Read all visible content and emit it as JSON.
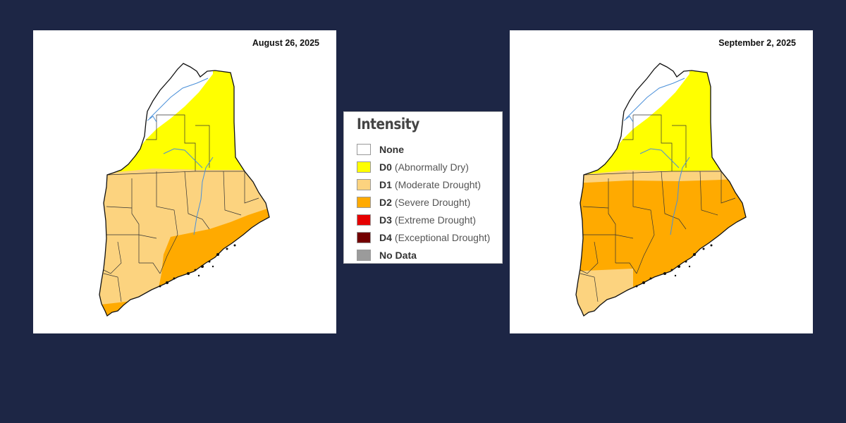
{
  "maps": [
    {
      "date": "August 26, 2025"
    },
    {
      "date": "September 2, 2025"
    }
  ],
  "legend": {
    "title": "Intensity",
    "items": [
      {
        "code": "None",
        "desc": "",
        "color": "#ffffff"
      },
      {
        "code": "D0",
        "desc": "(Abnormally Dry)",
        "color": "#ffff00"
      },
      {
        "code": "D1",
        "desc": "(Moderate Drought)",
        "color": "#fcd37f"
      },
      {
        "code": "D2",
        "desc": "(Severe Drought)",
        "color": "#ffaa00"
      },
      {
        "code": "D3",
        "desc": "(Extreme Drought)",
        "color": "#e60000"
      },
      {
        "code": "D4",
        "desc": "(Exceptional Drought)",
        "color": "#730000"
      },
      {
        "code": "No Data",
        "desc": "",
        "color": "#9b9b9b"
      }
    ]
  }
}
